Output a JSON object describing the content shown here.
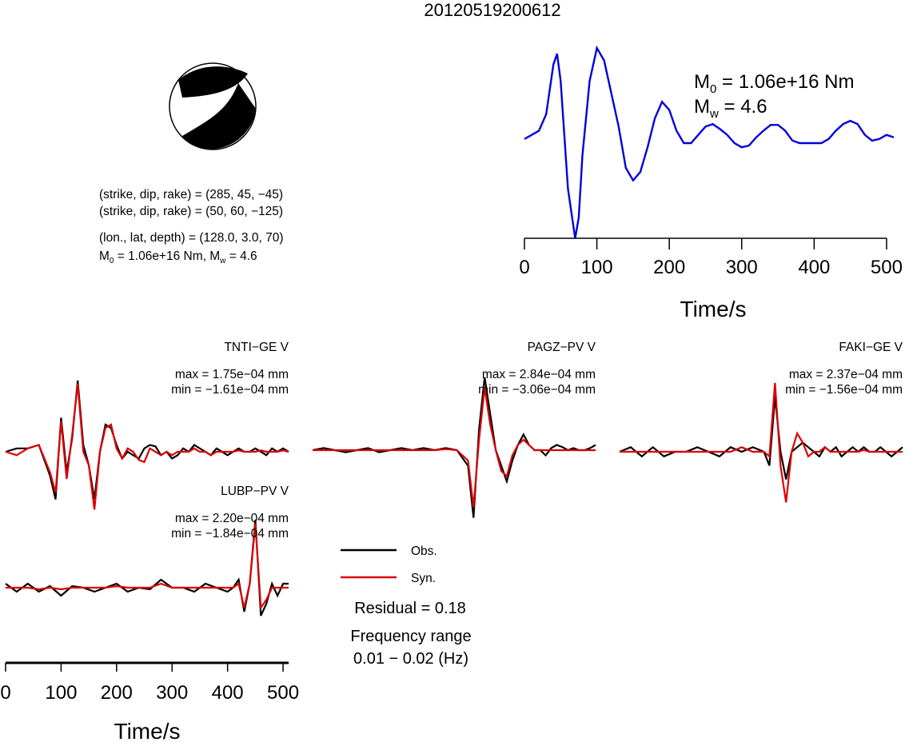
{
  "title": "20120519200612",
  "colors": {
    "observed": "#000000",
    "synthetic": "#dd0000",
    "stf": "#0000dd",
    "beachball_fill": "#000000"
  },
  "mechanism": {
    "plane1": "(strike, dip, rake) = (285, 45, −45)",
    "plane2": "(strike, dip, rake) = (50, 60, −125)",
    "location": "(lon., lat, depth) = (128.0, 3.0, 70)",
    "m0_prefix": "M",
    "m0_sub": "0",
    "m0_value": " = 1.06e+16 Nm, M",
    "mw_sub": "w",
    "mw_value": " = 4.6"
  },
  "stf_annotation": {
    "m0_prefix": "M",
    "m0_sub": "0",
    "m0_value": " = 1.06e+16 Nm",
    "mw_prefix": "M",
    "mw_sub": "w",
    "mw_value": " = 4.6"
  },
  "legend": {
    "observed": "Obs.",
    "synthetic": "Syn.",
    "residual": "Residual = 0.18",
    "freq_label": "Frequency range",
    "freq_value": "0.01 − 0.02 (Hz)"
  },
  "chart_data": [
    {
      "type": "line",
      "name": "source-time-function",
      "xlabel": "Time/s",
      "xlim": [
        0,
        510
      ],
      "xticks": [
        "0",
        "100",
        "200",
        "300",
        "400",
        "500"
      ],
      "x": [
        0,
        10,
        20,
        30,
        40,
        45,
        50,
        60,
        70,
        75,
        80,
        90,
        100,
        110,
        120,
        130,
        140,
        150,
        160,
        170,
        180,
        190,
        200,
        210,
        220,
        230,
        240,
        250,
        260,
        270,
        280,
        290,
        300,
        310,
        320,
        330,
        340,
        350,
        360,
        370,
        380,
        390,
        400,
        410,
        420,
        430,
        440,
        450,
        460,
        470,
        480,
        490,
        500,
        510
      ],
      "values": [
        0.0,
        0.05,
        0.1,
        0.3,
        0.9,
        1.03,
        0.7,
        -0.6,
        -1.2,
        -0.95,
        -0.2,
        0.7,
        1.1,
        0.95,
        0.55,
        0.15,
        -0.35,
        -0.5,
        -0.4,
        -0.1,
        0.25,
        0.45,
        0.35,
        0.1,
        -0.05,
        -0.05,
        0.05,
        0.15,
        0.18,
        0.12,
        0.05,
        -0.05,
        -0.1,
        -0.08,
        0.02,
        0.1,
        0.17,
        0.17,
        0.1,
        -0.02,
        -0.05,
        -0.05,
        -0.05,
        -0.05,
        0.0,
        0.1,
        0.18,
        0.22,
        0.18,
        0.05,
        -0.02,
        0.0,
        0.05,
        0.02
      ],
      "ylim": [
        -1.2,
        1.1
      ]
    },
    {
      "type": "line",
      "name": "waveform-fit",
      "station": "TNTI−GE V",
      "max_label": "max = 1.75e−04 mm",
      "min_label": "min = −1.61e−04 mm",
      "x": [
        0,
        20,
        40,
        60,
        80,
        90,
        100,
        110,
        120,
        130,
        140,
        150,
        160,
        170,
        180,
        190,
        200,
        210,
        220,
        230,
        240,
        250,
        260,
        270,
        280,
        290,
        300,
        310,
        320,
        330,
        340,
        350,
        360,
        370,
        380,
        390,
        400,
        410,
        420,
        430,
        440,
        450,
        460,
        470,
        480,
        490,
        500,
        510
      ],
      "observed": [
        0,
        0.05,
        0.05,
        0.1,
        -0.35,
        -0.7,
        0.5,
        -0.3,
        0.2,
        1.05,
        0.1,
        -0.2,
        -0.7,
        0.0,
        0.4,
        0.35,
        0.1,
        -0.1,
        0.0,
        -0.05,
        -0.1,
        0.05,
        0.1,
        0.08,
        -0.05,
        0.0,
        -0.1,
        -0.05,
        0.05,
        0.0,
        0.1,
        0.05,
        0.0,
        -0.05,
        0.05,
        0.0,
        -0.05,
        0.0,
        0.05,
        0.0,
        0.0,
        0.05,
        0.0,
        -0.05,
        0.05,
        0.0,
        0.05,
        0.0
      ],
      "synthetic": [
        0,
        -0.05,
        0.05,
        0.1,
        -0.3,
        -0.6,
        0.45,
        -0.4,
        0.25,
        1.0,
        0.0,
        -0.2,
        -0.85,
        0.0,
        0.35,
        0.4,
        0.05,
        -0.1,
        0.05,
        0.0,
        -0.12,
        -0.15,
        0.05,
        0.0,
        -0.05,
        0.0,
        -0.05,
        0.0,
        0.0,
        0.0,
        0.05,
        0.0,
        0.0,
        -0.05,
        0.0,
        0.0,
        0.0,
        0.0,
        0.02,
        0.0,
        0.0,
        0.0,
        0.02,
        0.0,
        0.0,
        0.0,
        0.02,
        0.0
      ]
    },
    {
      "type": "line",
      "name": "waveform-fit",
      "station": "PAGZ−PV V",
      "max_label": "max = 2.84e−04 mm",
      "min_label": "min = −3.06e−04 mm",
      "x": [
        0,
        20,
        40,
        60,
        80,
        100,
        120,
        140,
        160,
        180,
        200,
        220,
        240,
        260,
        280,
        290,
        300,
        310,
        320,
        330,
        340,
        350,
        360,
        370,
        380,
        390,
        400,
        410,
        420,
        430,
        440,
        450,
        460,
        470,
        480,
        490,
        500,
        510
      ],
      "observed": [
        0,
        0.02,
        0.0,
        -0.02,
        0.0,
        0.02,
        -0.02,
        0.0,
        0.02,
        0.0,
        0.02,
        0.0,
        0.02,
        0.0,
        -0.15,
        -0.65,
        0.2,
        0.7,
        0.35,
        0.0,
        -0.15,
        -0.3,
        -0.1,
        0.05,
        0.15,
        0.05,
        0.0,
        0.0,
        -0.05,
        0.02,
        0.05,
        0.03,
        0.0,
        0.02,
        0.0,
        0.0,
        0.02,
        0.05
      ],
      "synthetic": [
        0,
        0.0,
        0.0,
        0.0,
        0.0,
        0.0,
        0.0,
        0.0,
        0.0,
        0.0,
        0.0,
        0.0,
        0.01,
        0.0,
        -0.1,
        -0.55,
        0.1,
        0.6,
        0.25,
        0.0,
        -0.2,
        -0.25,
        -0.05,
        0.05,
        0.1,
        0.05,
        0.0,
        0.0,
        0.0,
        0.0,
        0.0,
        0.0,
        0.0,
        0.0,
        0.0,
        0.0,
        0.0,
        0.0
      ]
    },
    {
      "type": "line",
      "name": "waveform-fit",
      "station": "FAKI−GE V",
      "max_label": "max = 2.37e−04 mm",
      "min_label": "min = −1.56e−04 mm",
      "x": [
        0,
        20,
        40,
        60,
        80,
        100,
        120,
        140,
        160,
        180,
        200,
        220,
        240,
        260,
        270,
        280,
        290,
        300,
        310,
        320,
        330,
        340,
        350,
        360,
        370,
        380,
        390,
        400,
        410,
        420,
        430,
        440,
        450,
        460,
        470,
        480,
        490,
        500,
        510
      ],
      "observed": [
        0,
        0.05,
        -0.05,
        0.05,
        -0.05,
        0.0,
        0.0,
        0.05,
        0.0,
        -0.05,
        0.05,
        0.0,
        0.05,
        0.0,
        -0.15,
        0.6,
        0.0,
        -0.3,
        0.0,
        0.05,
        0.1,
        0.05,
        0.0,
        -0.05,
        0.05,
        0.0,
        0.05,
        -0.05,
        0.0,
        0.05,
        0.0,
        0.05,
        0.0,
        0.0,
        0.05,
        0.0,
        -0.05,
        0.0,
        0.05
      ],
      "synthetic": [
        0,
        0.0,
        0.0,
        0.0,
        0.0,
        0.0,
        0.0,
        0.0,
        0.0,
        0.0,
        0.0,
        0.05,
        0.0,
        0.0,
        -0.05,
        0.75,
        -0.15,
        -0.55,
        0.0,
        0.2,
        0.1,
        -0.05,
        0.0,
        0.0,
        0.05,
        0.0,
        0.0,
        0.0,
        0.0,
        0.0,
        0.0,
        0.02,
        0.0,
        0.0,
        0.0,
        0.0,
        0.0,
        0.0,
        0.0
      ]
    },
    {
      "type": "line",
      "name": "waveform-fit",
      "station": "LUBP−PV V",
      "max_label": "max = 2.20e−04 mm",
      "min_label": "min = −1.84e−04 mm",
      "xlabel": "Time/s",
      "xlim": [
        0,
        510
      ],
      "xticks": [
        "0",
        "100",
        "200",
        "300",
        "400",
        "500"
      ],
      "x": [
        0,
        20,
        40,
        60,
        80,
        100,
        120,
        140,
        160,
        180,
        200,
        220,
        240,
        260,
        280,
        300,
        320,
        340,
        360,
        380,
        400,
        410,
        420,
        430,
        440,
        450,
        460,
        470,
        480,
        490,
        500,
        510
      ],
      "observed": [
        0.05,
        -0.05,
        0.05,
        -0.05,
        0.02,
        -0.1,
        0.02,
        0.0,
        -0.05,
        0.0,
        0.05,
        -0.05,
        0.0,
        -0.02,
        0.1,
        0.0,
        0.0,
        -0.05,
        0.05,
        0.0,
        -0.05,
        0.0,
        0.1,
        -0.3,
        0.05,
        0.85,
        -0.35,
        -0.2,
        0.05,
        -0.1,
        0.05,
        0.05
      ],
      "synthetic": [
        0.0,
        0.0,
        0.0,
        -0.02,
        0.0,
        -0.02,
        0.0,
        0.0,
        0.0,
        0.0,
        0.02,
        0.0,
        0.0,
        0.0,
        0.05,
        0.0,
        0.0,
        0.0,
        0.0,
        0.0,
        0.0,
        0.0,
        0.05,
        -0.25,
        0.05,
        0.8,
        -0.25,
        -0.15,
        0.0,
        0.0,
        0.0,
        0.0
      ]
    }
  ]
}
